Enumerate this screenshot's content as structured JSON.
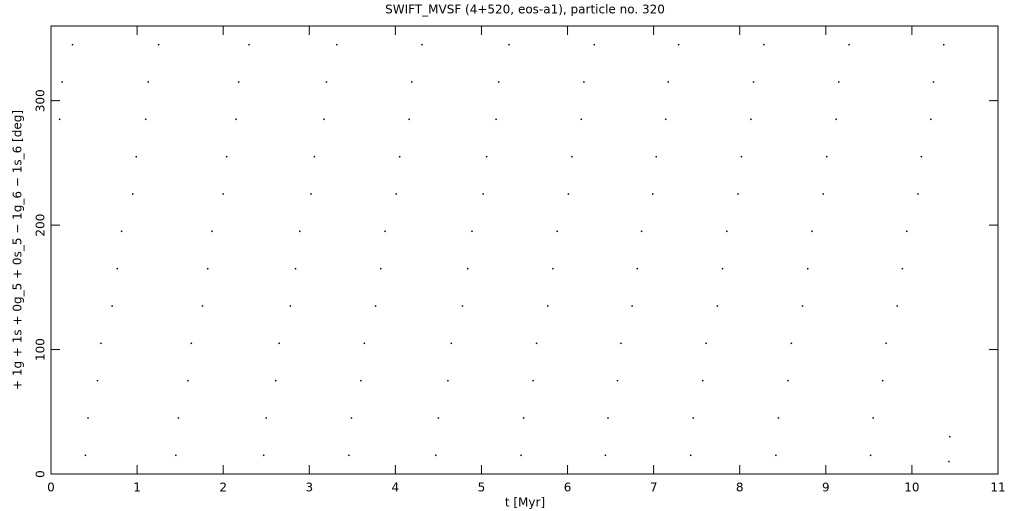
{
  "chart_data": {
    "type": "scatter",
    "title": "SWIFT_MVSF (4+520, eos-a1), particle no. 320",
    "x_label": "t [Myr]",
    "y_label": "+ 1g + 1s + 0g_5 + 0s_5 − 1g_6 − 1s_6 [deg]",
    "color": "#000000",
    "xlim": [
      0,
      11
    ],
    "ylim": [
      0,
      360
    ],
    "xticks": [
      0,
      1,
      2,
      3,
      4,
      5,
      6,
      7,
      8,
      9,
      10,
      11
    ],
    "yticks": [
      0,
      100,
      200,
      300
    ],
    "x": [
      0.1,
      0.13,
      0.25,
      0.4,
      0.43,
      0.54,
      0.58,
      0.71,
      0.77,
      0.82,
      0.95,
      0.99,
      1.1,
      1.13,
      1.25,
      1.45,
      1.48,
      1.59,
      1.63,
      1.76,
      1.82,
      1.87,
      2.0,
      2.04,
      2.15,
      2.18,
      2.3,
      2.47,
      2.5,
      2.61,
      2.65,
      2.78,
      2.84,
      2.89,
      3.02,
      3.06,
      3.17,
      3.2,
      3.32,
      3.46,
      3.49,
      3.6,
      3.64,
      3.77,
      3.83,
      3.88,
      4.01,
      4.05,
      4.16,
      4.19,
      4.31,
      4.47,
      4.5,
      4.61,
      4.65,
      4.78,
      4.84,
      4.89,
      5.02,
      5.06,
      5.17,
      5.2,
      5.32,
      5.46,
      5.49,
      5.6,
      5.64,
      5.77,
      5.83,
      5.88,
      6.01,
      6.05,
      6.16,
      6.19,
      6.31,
      6.44,
      6.47,
      6.58,
      6.62,
      6.75,
      6.81,
      6.86,
      6.99,
      7.03,
      7.14,
      7.17,
      7.29,
      7.43,
      7.46,
      7.57,
      7.61,
      7.74,
      7.8,
      7.85,
      7.98,
      8.02,
      8.13,
      8.16,
      8.28,
      8.42,
      8.45,
      8.56,
      8.6,
      8.73,
      8.79,
      8.84,
      8.97,
      9.01,
      9.12,
      9.15,
      9.27,
      9.52,
      9.55,
      9.66,
      9.7,
      9.83,
      9.89,
      9.94,
      10.07,
      10.11,
      10.22,
      10.25,
      10.37,
      10.43,
      10.44
    ],
    "y": [
      285,
      315,
      345,
      15,
      45,
      75,
      105,
      135,
      165,
      195,
      225,
      255,
      285,
      315,
      345,
      15,
      45,
      75,
      105,
      135,
      165,
      195,
      225,
      255,
      285,
      315,
      345,
      15,
      45,
      75,
      105,
      135,
      165,
      195,
      225,
      255,
      285,
      315,
      345,
      15,
      45,
      75,
      105,
      135,
      165,
      195,
      225,
      255,
      285,
      315,
      345,
      15,
      45,
      75,
      105,
      135,
      165,
      195,
      225,
      255,
      285,
      315,
      345,
      15,
      45,
      75,
      105,
      135,
      165,
      195,
      225,
      255,
      285,
      315,
      345,
      15,
      45,
      75,
      105,
      135,
      165,
      195,
      225,
      255,
      285,
      315,
      345,
      15,
      45,
      75,
      105,
      135,
      165,
      195,
      225,
      255,
      285,
      315,
      345,
      15,
      45,
      75,
      105,
      135,
      165,
      195,
      225,
      255,
      285,
      315,
      345,
      15,
      45,
      75,
      105,
      135,
      165,
      195,
      225,
      255,
      285,
      315,
      345,
      10,
      30
    ]
  }
}
